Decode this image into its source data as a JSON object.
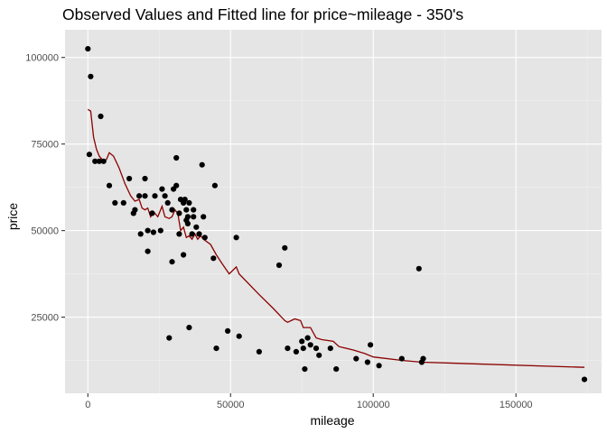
{
  "chart_data": {
    "type": "scatter",
    "title": "Observed Values and Fitted line for price~mileage - 350's",
    "xlabel": "mileage",
    "ylabel": "price",
    "xlim": [
      -8000,
      180000
    ],
    "ylim": [
      3000,
      108000
    ],
    "x_ticks": [
      0,
      50000,
      100000,
      150000
    ],
    "x_tick_labels": [
      "0",
      "50000",
      "100000",
      "150000"
    ],
    "y_ticks": [
      25000,
      50000,
      75000,
      100000
    ],
    "y_tick_labels": [
      "25000",
      "50000",
      "75000",
      "100000"
    ],
    "grid": true,
    "legend": "none",
    "colors": {
      "panel_background": "#e5e5e5",
      "grid_major": "#ffffff",
      "grid_minor": "#f2f2f2",
      "points": "#000000",
      "fitted_line": "#8b0000"
    },
    "series": [
      {
        "kind": "points",
        "points": [
          [
            0,
            102500
          ],
          [
            1000,
            94500
          ],
          [
            500,
            72000
          ],
          [
            2500,
            70000
          ],
          [
            4000,
            70000
          ],
          [
            5500,
            70000
          ],
          [
            4500,
            83000
          ],
          [
            7500,
            63000
          ],
          [
            9500,
            58000
          ],
          [
            12500,
            58000
          ],
          [
            14500,
            65000
          ],
          [
            16000,
            55000
          ],
          [
            16500,
            56000
          ],
          [
            18000,
            60000
          ],
          [
            18500,
            49000
          ],
          [
            20000,
            60000
          ],
          [
            20000,
            65000
          ],
          [
            21000,
            44000
          ],
          [
            21000,
            50000
          ],
          [
            22500,
            55000
          ],
          [
            23000,
            49500
          ],
          [
            23500,
            60000
          ],
          [
            25500,
            50000
          ],
          [
            26000,
            62000
          ],
          [
            27000,
            60000
          ],
          [
            28000,
            58000
          ],
          [
            28500,
            19000
          ],
          [
            29500,
            56000
          ],
          [
            29500,
            41000
          ],
          [
            30000,
            62000
          ],
          [
            31000,
            71000
          ],
          [
            31000,
            63000
          ],
          [
            32000,
            55000
          ],
          [
            32000,
            49000
          ],
          [
            32500,
            59000
          ],
          [
            33500,
            58000
          ],
          [
            33500,
            43000
          ],
          [
            34000,
            59000
          ],
          [
            34500,
            56000
          ],
          [
            34500,
            53000
          ],
          [
            35000,
            54000
          ],
          [
            35000,
            52000
          ],
          [
            35500,
            58000
          ],
          [
            35500,
            22000
          ],
          [
            36500,
            49000
          ],
          [
            37000,
            56000
          ],
          [
            37000,
            54000
          ],
          [
            38000,
            51000
          ],
          [
            39000,
            49000
          ],
          [
            40000,
            69000
          ],
          [
            40500,
            54000
          ],
          [
            41000,
            48000
          ],
          [
            44000,
            42000
          ],
          [
            44500,
            63000
          ],
          [
            45000,
            16000
          ],
          [
            49000,
            21000
          ],
          [
            52000,
            48000
          ],
          [
            53000,
            19500
          ],
          [
            60000,
            15000
          ],
          [
            67000,
            40000
          ],
          [
            69000,
            45000
          ],
          [
            70000,
            16000
          ],
          [
            73000,
            15000
          ],
          [
            75000,
            18000
          ],
          [
            75500,
            16000
          ],
          [
            76000,
            10000
          ],
          [
            77000,
            19000
          ],
          [
            78000,
            17000
          ],
          [
            80000,
            16000
          ],
          [
            81000,
            14000
          ],
          [
            85000,
            16000
          ],
          [
            87000,
            10000
          ],
          [
            94000,
            13000
          ],
          [
            98000,
            12000
          ],
          [
            99000,
            17000
          ],
          [
            102000,
            11000
          ],
          [
            110000,
            13000
          ],
          [
            116000,
            39000
          ],
          [
            117000,
            12000
          ],
          [
            117500,
            13000
          ],
          [
            174000,
            7000
          ]
        ]
      },
      {
        "kind": "fitted_line",
        "points": [
          [
            0,
            85000
          ],
          [
            1000,
            84500
          ],
          [
            2000,
            77000
          ],
          [
            3000,
            73500
          ],
          [
            4000,
            71500
          ],
          [
            5500,
            70000
          ],
          [
            6500,
            70500
          ],
          [
            7500,
            72500
          ],
          [
            9000,
            71500
          ],
          [
            11000,
            68000
          ],
          [
            13000,
            63500
          ],
          [
            15000,
            60000
          ],
          [
            16500,
            58500
          ],
          [
            18000,
            59000
          ],
          [
            19000,
            56500
          ],
          [
            20000,
            56000
          ],
          [
            21000,
            56500
          ],
          [
            22000,
            54000
          ],
          [
            23000,
            55500
          ],
          [
            24500,
            54000
          ],
          [
            26000,
            57000
          ],
          [
            27000,
            54000
          ],
          [
            28500,
            53500
          ],
          [
            29500,
            54000
          ],
          [
            30500,
            56000
          ],
          [
            31500,
            55000
          ],
          [
            32500,
            50000
          ],
          [
            33500,
            51000
          ],
          [
            34500,
            48000
          ],
          [
            35500,
            48500
          ],
          [
            36500,
            47500
          ],
          [
            37500,
            49000
          ],
          [
            38500,
            47500
          ],
          [
            39500,
            48500
          ],
          [
            40500,
            47500
          ],
          [
            43000,
            46000
          ],
          [
            45000,
            43000
          ],
          [
            47000,
            40500
          ],
          [
            49500,
            37500
          ],
          [
            52000,
            39500
          ],
          [
            53000,
            37500
          ],
          [
            60000,
            31500
          ],
          [
            65000,
            27500
          ],
          [
            69000,
            24000
          ],
          [
            70000,
            23500
          ],
          [
            72500,
            24500
          ],
          [
            74500,
            24000
          ],
          [
            75500,
            22000
          ],
          [
            78000,
            22000
          ],
          [
            80000,
            19000
          ],
          [
            82000,
            18500
          ],
          [
            86000,
            18000
          ],
          [
            88000,
            16500
          ],
          [
            93000,
            15500
          ],
          [
            97000,
            14500
          ],
          [
            100000,
            13500
          ],
          [
            110000,
            12500
          ],
          [
            117000,
            12000
          ],
          [
            174000,
            10500
          ]
        ]
      }
    ]
  }
}
